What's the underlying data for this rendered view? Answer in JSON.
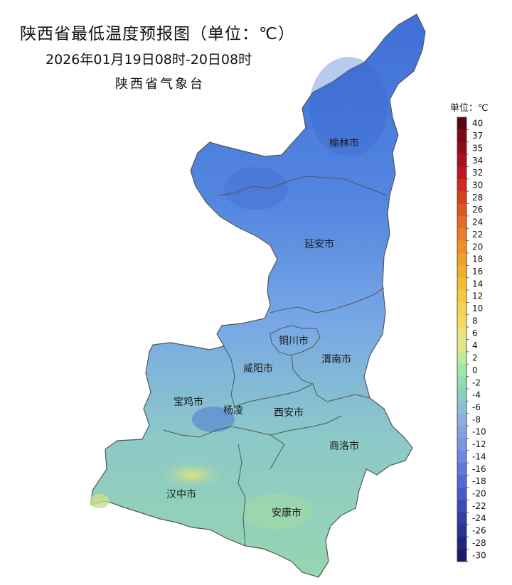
{
  "header": {
    "title": "陕西省最低温度预报图（单位：℃）",
    "subtitle": "2026年01月19日08时-20日08时",
    "agency": "陕西省气象台"
  },
  "map": {
    "cities": [
      {
        "id": "yulin",
        "label": "榆林市"
      },
      {
        "id": "yanan",
        "label": "延安市"
      },
      {
        "id": "tongchuan",
        "label": "铜川市"
      },
      {
        "id": "weinan",
        "label": "渭南市"
      },
      {
        "id": "xianyang",
        "label": "咸阳市"
      },
      {
        "id": "baoji",
        "label": "宝鸡市"
      },
      {
        "id": "yangling",
        "label": "杨凌"
      },
      {
        "id": "xian",
        "label": "西安市"
      },
      {
        "id": "shangluo",
        "label": "商洛市"
      },
      {
        "id": "hanzhong",
        "label": "汉中市"
      },
      {
        "id": "ankang",
        "label": "安康市"
      }
    ]
  },
  "legend": {
    "unit_label": "单位：℃",
    "ticks": [
      "40",
      "37",
      "35",
      "34",
      "32",
      "30",
      "28",
      "26",
      "24",
      "22",
      "20",
      "18",
      "16",
      "14",
      "12",
      "10",
      "8",
      "6",
      "4",
      "2",
      "0",
      "-2",
      "-4",
      "-6",
      "-8",
      "-10",
      "-12",
      "-14",
      "-16",
      "-18",
      "-20",
      "-22",
      "-24",
      "-26",
      "-28",
      "-30"
    ],
    "colors": [
      "#5a0712",
      "#7a0a18",
      "#920d1c",
      "#a8101e",
      "#bf1520",
      "#cf2a1e",
      "#d8401e",
      "#df561f",
      "#e56a22",
      "#ea7d25",
      "#ee8f27",
      "#f09f28",
      "#f2ae2a",
      "#f4bd31",
      "#f6c93e",
      "#f8d250",
      "#f3db63",
      "#ece378",
      "#dfe78a",
      "#bfe99a",
      "#9fe6a8",
      "#8ddcb6",
      "#8ad0c2",
      "#89c1d2",
      "#8ab0dd",
      "#86a2e2",
      "#7d94e3",
      "#7087e1",
      "#6279dc",
      "#5469d4",
      "#485ac8",
      "#3d4bb7",
      "#323ea5",
      "#293191",
      "#21267c",
      "#1a1d66"
    ]
  }
}
